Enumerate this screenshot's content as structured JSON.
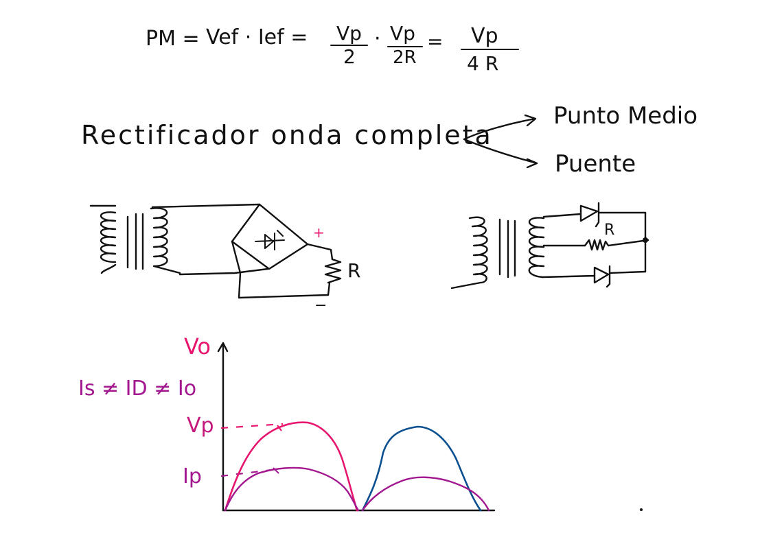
{
  "formula": {
    "lhs": "PM =",
    "middle": "Vef · Ief =",
    "frac1_num": "Vp",
    "frac1_den": "2",
    "dot": "·",
    "frac2_num": "Vp",
    "frac2_den": "2R",
    "eq": "=",
    "frac3_num": "Vp",
    "frac3_den": "4 R"
  },
  "heading": {
    "title": "Rectificador onda completa",
    "branch_top": "Punto Medio",
    "branch_bottom": "Puente"
  },
  "bridge_circuit": {
    "plus": "+",
    "minus": "−",
    "load_label": "R"
  },
  "center_tap_circuit": {
    "load_label": "R"
  },
  "waveform": {
    "axis_label_vo": "Vo",
    "current_relation": "Is ≠ ID ≠ Io",
    "tick_vp": "Vp",
    "tick_ip": "Ip",
    "colors": {
      "voltage_first": "#e8156e",
      "voltage_second": "#0a4f8f",
      "current": "#a3188f",
      "labels": "#c4187c",
      "ink": "#111111"
    }
  }
}
